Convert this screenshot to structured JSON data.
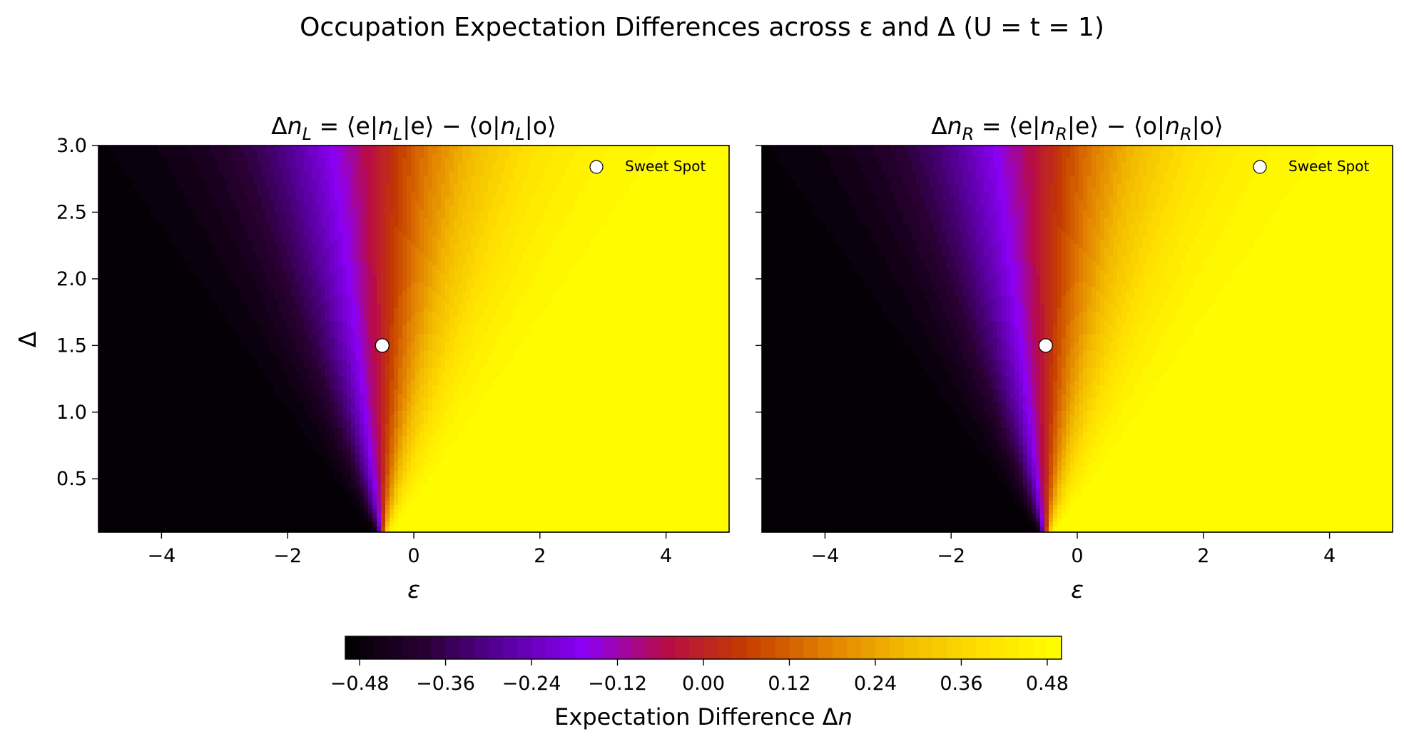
{
  "figure": {
    "suptitle": "Occupation Expectation Differences across ε and Δ  (U = t = 1)"
  },
  "chart_data": [
    {
      "type": "heatmap",
      "title": "Δn_L = ⟨e|n_L|e⟩ − ⟨o|n_L|o⟩",
      "title_parts": {
        "head": "Δ",
        "n": "n",
        "sub": "L"
      },
      "xlabel": "ε",
      "ylabel": "Δ",
      "xlim": [
        -5,
        5
      ],
      "ylim": [
        0.1,
        3.0
      ],
      "x_ticks": [
        -4,
        -2,
        0,
        2,
        4
      ],
      "x_tick_labels": [
        "−4",
        "−2",
        "0",
        "2",
        "4"
      ],
      "y_ticks": [
        0.5,
        1.0,
        1.5,
        2.0,
        2.5,
        3.0
      ],
      "y_tick_labels": [
        "0.5",
        "1.0",
        "1.5",
        "2.0",
        "2.5",
        "3.0"
      ],
      "colormap": "gnuplot",
      "sweet_spot": {
        "epsilon": -0.5,
        "delta": 1.5,
        "legend_label": "Sweet Spot"
      }
    },
    {
      "type": "heatmap",
      "title": "Δn_R = ⟨e|n_R|e⟩ − ⟨o|n_R|o⟩",
      "title_parts": {
        "head": "Δ",
        "n": "n",
        "sub": "R"
      },
      "xlabel": "ε",
      "ylabel": "",
      "xlim": [
        -5,
        5
      ],
      "ylim": [
        0.1,
        3.0
      ],
      "x_ticks": [
        -4,
        -2,
        0,
        2,
        4
      ],
      "x_tick_labels": [
        "−4",
        "−2",
        "0",
        "2",
        "4"
      ],
      "y_ticks": [
        0.5,
        1.0,
        1.5,
        2.0,
        2.5,
        3.0
      ],
      "y_tick_labels": [],
      "colormap": "gnuplot",
      "sweet_spot": {
        "epsilon": -0.5,
        "delta": 1.5,
        "legend_label": "Sweet Spot"
      }
    }
  ],
  "colorbar": {
    "label": "Expectation Difference Δ",
    "label_var": "n",
    "range": [
      -0.5,
      0.5
    ],
    "levels": 50,
    "ticks": [
      -0.48,
      -0.36,
      -0.24,
      -0.12,
      0.0,
      0.12,
      0.24,
      0.36,
      0.48
    ],
    "tick_labels": [
      "−0.48",
      "−0.36",
      "−0.24",
      "−0.12",
      "0.00",
      "0.12",
      "0.24",
      "0.36",
      "0.48"
    ]
  },
  "colors": {
    "colormap_stops": [
      "#000000",
      "#2a0033",
      "#5a00a0",
      "#8a00f5",
      "#b70a4a",
      "#c43a00",
      "#e07d00",
      "#f2b900",
      "#ffe000",
      "#ffff00"
    ],
    "marker_fill": "#ffffff",
    "marker_edge": "#000000"
  }
}
